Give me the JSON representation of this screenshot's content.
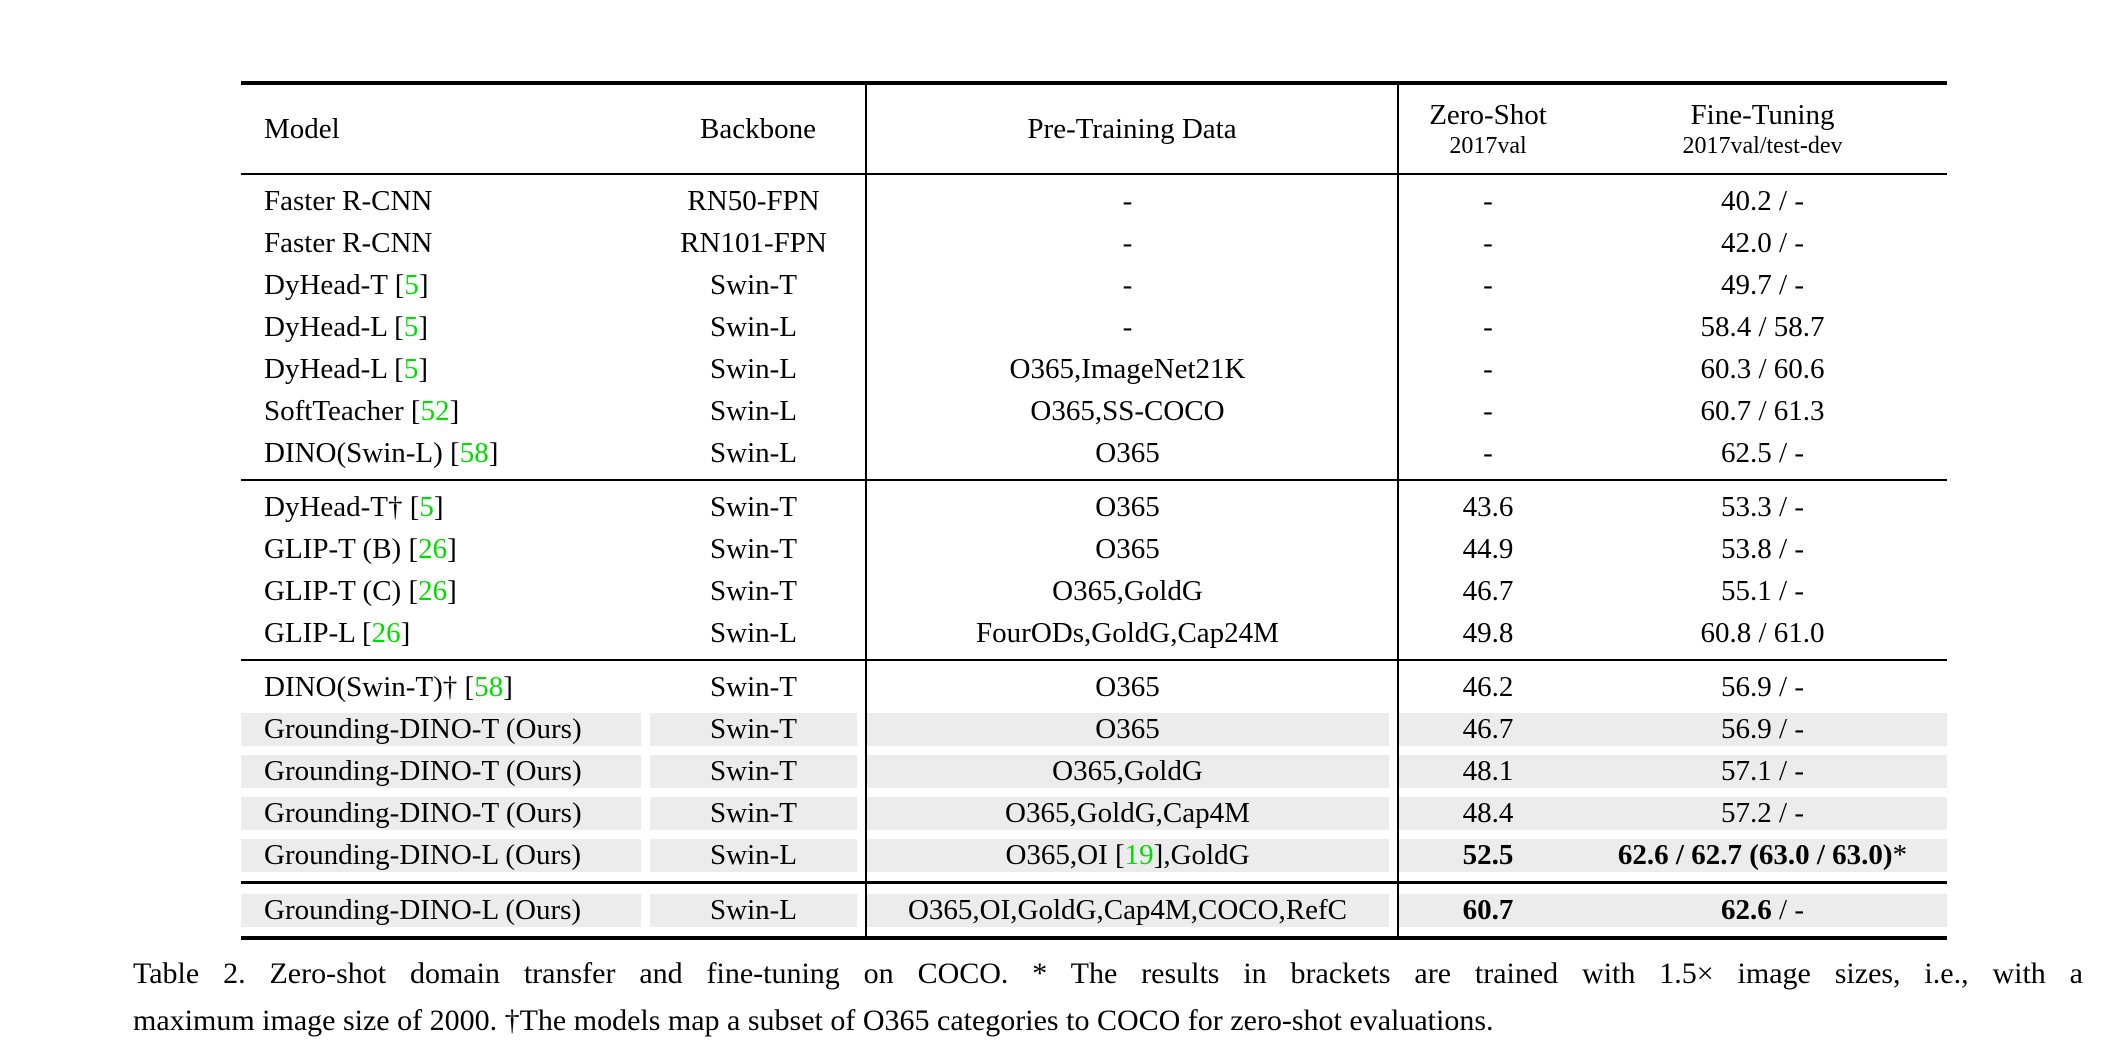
{
  "table": {
    "colors": {
      "citation_green": "#00DE00",
      "highlight_gray": "#ECECEC"
    },
    "headers": {
      "model": "Model",
      "backbone": "Backbone",
      "pretrain": "Pre-Training Data",
      "zeroshot_title": "Zero-Shot",
      "zeroshot_sub": "2017val",
      "finetune_title": "Fine-Tuning",
      "finetune_sub": "2017val/test-dev"
    },
    "groups": [
      {
        "rows": [
          {
            "highlight": false,
            "model": {
              "pre": "Faster R-CNN",
              "cite": "",
              "post": ""
            },
            "backbone": "RN50-FPN",
            "pretrain": {
              "pre": "-",
              "cite": "",
              "post": ""
            },
            "zeroshot": {
              "b": "",
              "n": "-"
            },
            "finetune": {
              "b": "",
              "n": "40.2 / -"
            }
          },
          {
            "highlight": false,
            "model": {
              "pre": "Faster R-CNN",
              "cite": "",
              "post": ""
            },
            "backbone": "RN101-FPN",
            "pretrain": {
              "pre": "-",
              "cite": "",
              "post": ""
            },
            "zeroshot": {
              "b": "",
              "n": "-"
            },
            "finetune": {
              "b": "",
              "n": "42.0 / -"
            }
          },
          {
            "highlight": false,
            "model": {
              "pre": "DyHead-T [",
              "cite": "5",
              "post": "]"
            },
            "backbone": "Swin-T",
            "pretrain": {
              "pre": "-",
              "cite": "",
              "post": ""
            },
            "zeroshot": {
              "b": "",
              "n": "-"
            },
            "finetune": {
              "b": "",
              "n": "49.7 / -"
            }
          },
          {
            "highlight": false,
            "model": {
              "pre": "DyHead-L [",
              "cite": "5",
              "post": "]"
            },
            "backbone": "Swin-L",
            "pretrain": {
              "pre": "-",
              "cite": "",
              "post": ""
            },
            "zeroshot": {
              "b": "",
              "n": "-"
            },
            "finetune": {
              "b": "",
              "n": "58.4 / 58.7"
            }
          },
          {
            "highlight": false,
            "model": {
              "pre": "DyHead-L [",
              "cite": "5",
              "post": "]"
            },
            "backbone": "Swin-L",
            "pretrain": {
              "pre": "O365,ImageNet21K",
              "cite": "",
              "post": ""
            },
            "zeroshot": {
              "b": "",
              "n": "-"
            },
            "finetune": {
              "b": "",
              "n": "60.3 / 60.6"
            }
          },
          {
            "highlight": false,
            "model": {
              "pre": "SoftTeacher [",
              "cite": "52",
              "post": "]"
            },
            "backbone": "Swin-L",
            "pretrain": {
              "pre": "O365,SS-COCO",
              "cite": "",
              "post": ""
            },
            "zeroshot": {
              "b": "",
              "n": "-"
            },
            "finetune": {
              "b": "",
              "n": "60.7 / 61.3"
            }
          },
          {
            "highlight": false,
            "model": {
              "pre": "DINO(Swin-L) [",
              "cite": "58",
              "post": "]"
            },
            "backbone": "Swin-L",
            "pretrain": {
              "pre": "O365",
              "cite": "",
              "post": ""
            },
            "zeroshot": {
              "b": "",
              "n": "-"
            },
            "finetune": {
              "b": "",
              "n": "62.5 / -"
            }
          }
        ]
      },
      {
        "rows": [
          {
            "highlight": false,
            "model": {
              "pre": "DyHead-T† [",
              "cite": "5",
              "post": "]"
            },
            "backbone": "Swin-T",
            "pretrain": {
              "pre": "O365",
              "cite": "",
              "post": ""
            },
            "zeroshot": {
              "b": "",
              "n": "43.6"
            },
            "finetune": {
              "b": "",
              "n": "53.3 / -"
            }
          },
          {
            "highlight": false,
            "model": {
              "pre": "GLIP-T (B) [",
              "cite": "26",
              "post": "]"
            },
            "backbone": "Swin-T",
            "pretrain": {
              "pre": "O365",
              "cite": "",
              "post": ""
            },
            "zeroshot": {
              "b": "",
              "n": "44.9"
            },
            "finetune": {
              "b": "",
              "n": "53.8 / -"
            }
          },
          {
            "highlight": false,
            "model": {
              "pre": "GLIP-T (C) [",
              "cite": "26",
              "post": "]"
            },
            "backbone": "Swin-T",
            "pretrain": {
              "pre": "O365,GoldG",
              "cite": "",
              "post": ""
            },
            "zeroshot": {
              "b": "",
              "n": "46.7"
            },
            "finetune": {
              "b": "",
              "n": "55.1 / -"
            }
          },
          {
            "highlight": false,
            "model": {
              "pre": "GLIP-L [",
              "cite": "26",
              "post": "]"
            },
            "backbone": "Swin-L",
            "pretrain": {
              "pre": "FourODs,GoldG,Cap24M",
              "cite": "",
              "post": ""
            },
            "zeroshot": {
              "b": "",
              "n": "49.8"
            },
            "finetune": {
              "b": "",
              "n": "60.8 / 61.0"
            }
          }
        ]
      },
      {
        "rows": [
          {
            "highlight": false,
            "model": {
              "pre": "DINO(Swin-T)† [",
              "cite": "58",
              "post": "]"
            },
            "backbone": "Swin-T",
            "pretrain": {
              "pre": "O365",
              "cite": "",
              "post": ""
            },
            "zeroshot": {
              "b": "",
              "n": "46.2"
            },
            "finetune": {
              "b": "",
              "n": "56.9 / -"
            }
          },
          {
            "highlight": true,
            "model": {
              "pre": "Grounding-DINO-T (Ours)",
              "cite": "",
              "post": ""
            },
            "backbone": "Swin-T",
            "pretrain": {
              "pre": "O365",
              "cite": "",
              "post": ""
            },
            "zeroshot": {
              "b": "",
              "n": "46.7"
            },
            "finetune": {
              "b": "",
              "n": "56.9 / -"
            }
          },
          {
            "highlight": true,
            "model": {
              "pre": "Grounding-DINO-T (Ours)",
              "cite": "",
              "post": ""
            },
            "backbone": "Swin-T",
            "pretrain": {
              "pre": "O365,GoldG",
              "cite": "",
              "post": ""
            },
            "zeroshot": {
              "b": "",
              "n": "48.1"
            },
            "finetune": {
              "b": "",
              "n": "57.1 / -"
            }
          },
          {
            "highlight": true,
            "model": {
              "pre": "Grounding-DINO-T (Ours)",
              "cite": "",
              "post": ""
            },
            "backbone": "Swin-T",
            "pretrain": {
              "pre": "O365,GoldG,Cap4M",
              "cite": "",
              "post": ""
            },
            "zeroshot": {
              "b": "",
              "n": "48.4"
            },
            "finetune": {
              "b": "",
              "n": "57.2 / -"
            }
          },
          {
            "highlight": true,
            "model": {
              "pre": "Grounding-DINO-L (Ours)",
              "cite": "",
              "post": ""
            },
            "backbone": "Swin-L",
            "pretrain": {
              "pre": "O365,OI [",
              "cite": "19",
              "post": "],GoldG"
            },
            "zeroshot": {
              "b": "52.5",
              "n": ""
            },
            "finetune": {
              "b": "62.6 / 62.7 (63.0 / 63.0)",
              "n": "*"
            }
          }
        ]
      },
      {
        "rows": [
          {
            "highlight": true,
            "model": {
              "pre": "Grounding-DINO-L (Ours)",
              "cite": "",
              "post": ""
            },
            "backbone": "Swin-L",
            "pretrain": {
              "pre": "O365,OI,GoldG,Cap4M,COCO,RefC",
              "cite": "",
              "post": ""
            },
            "zeroshot": {
              "b": "60.7",
              "n": ""
            },
            "finetune": {
              "b": "62.6",
              "n": " / -"
            }
          }
        ]
      }
    ],
    "caption_line1": "Table 2.  Zero-shot domain transfer and fine-tuning on COCO. * The results in brackets are trained with 1.5× image sizes, i.e., with a",
    "caption_line2": "maximum image size of 2000. †The models map a subset of O365 categories to COCO for zero-shot evaluations."
  }
}
